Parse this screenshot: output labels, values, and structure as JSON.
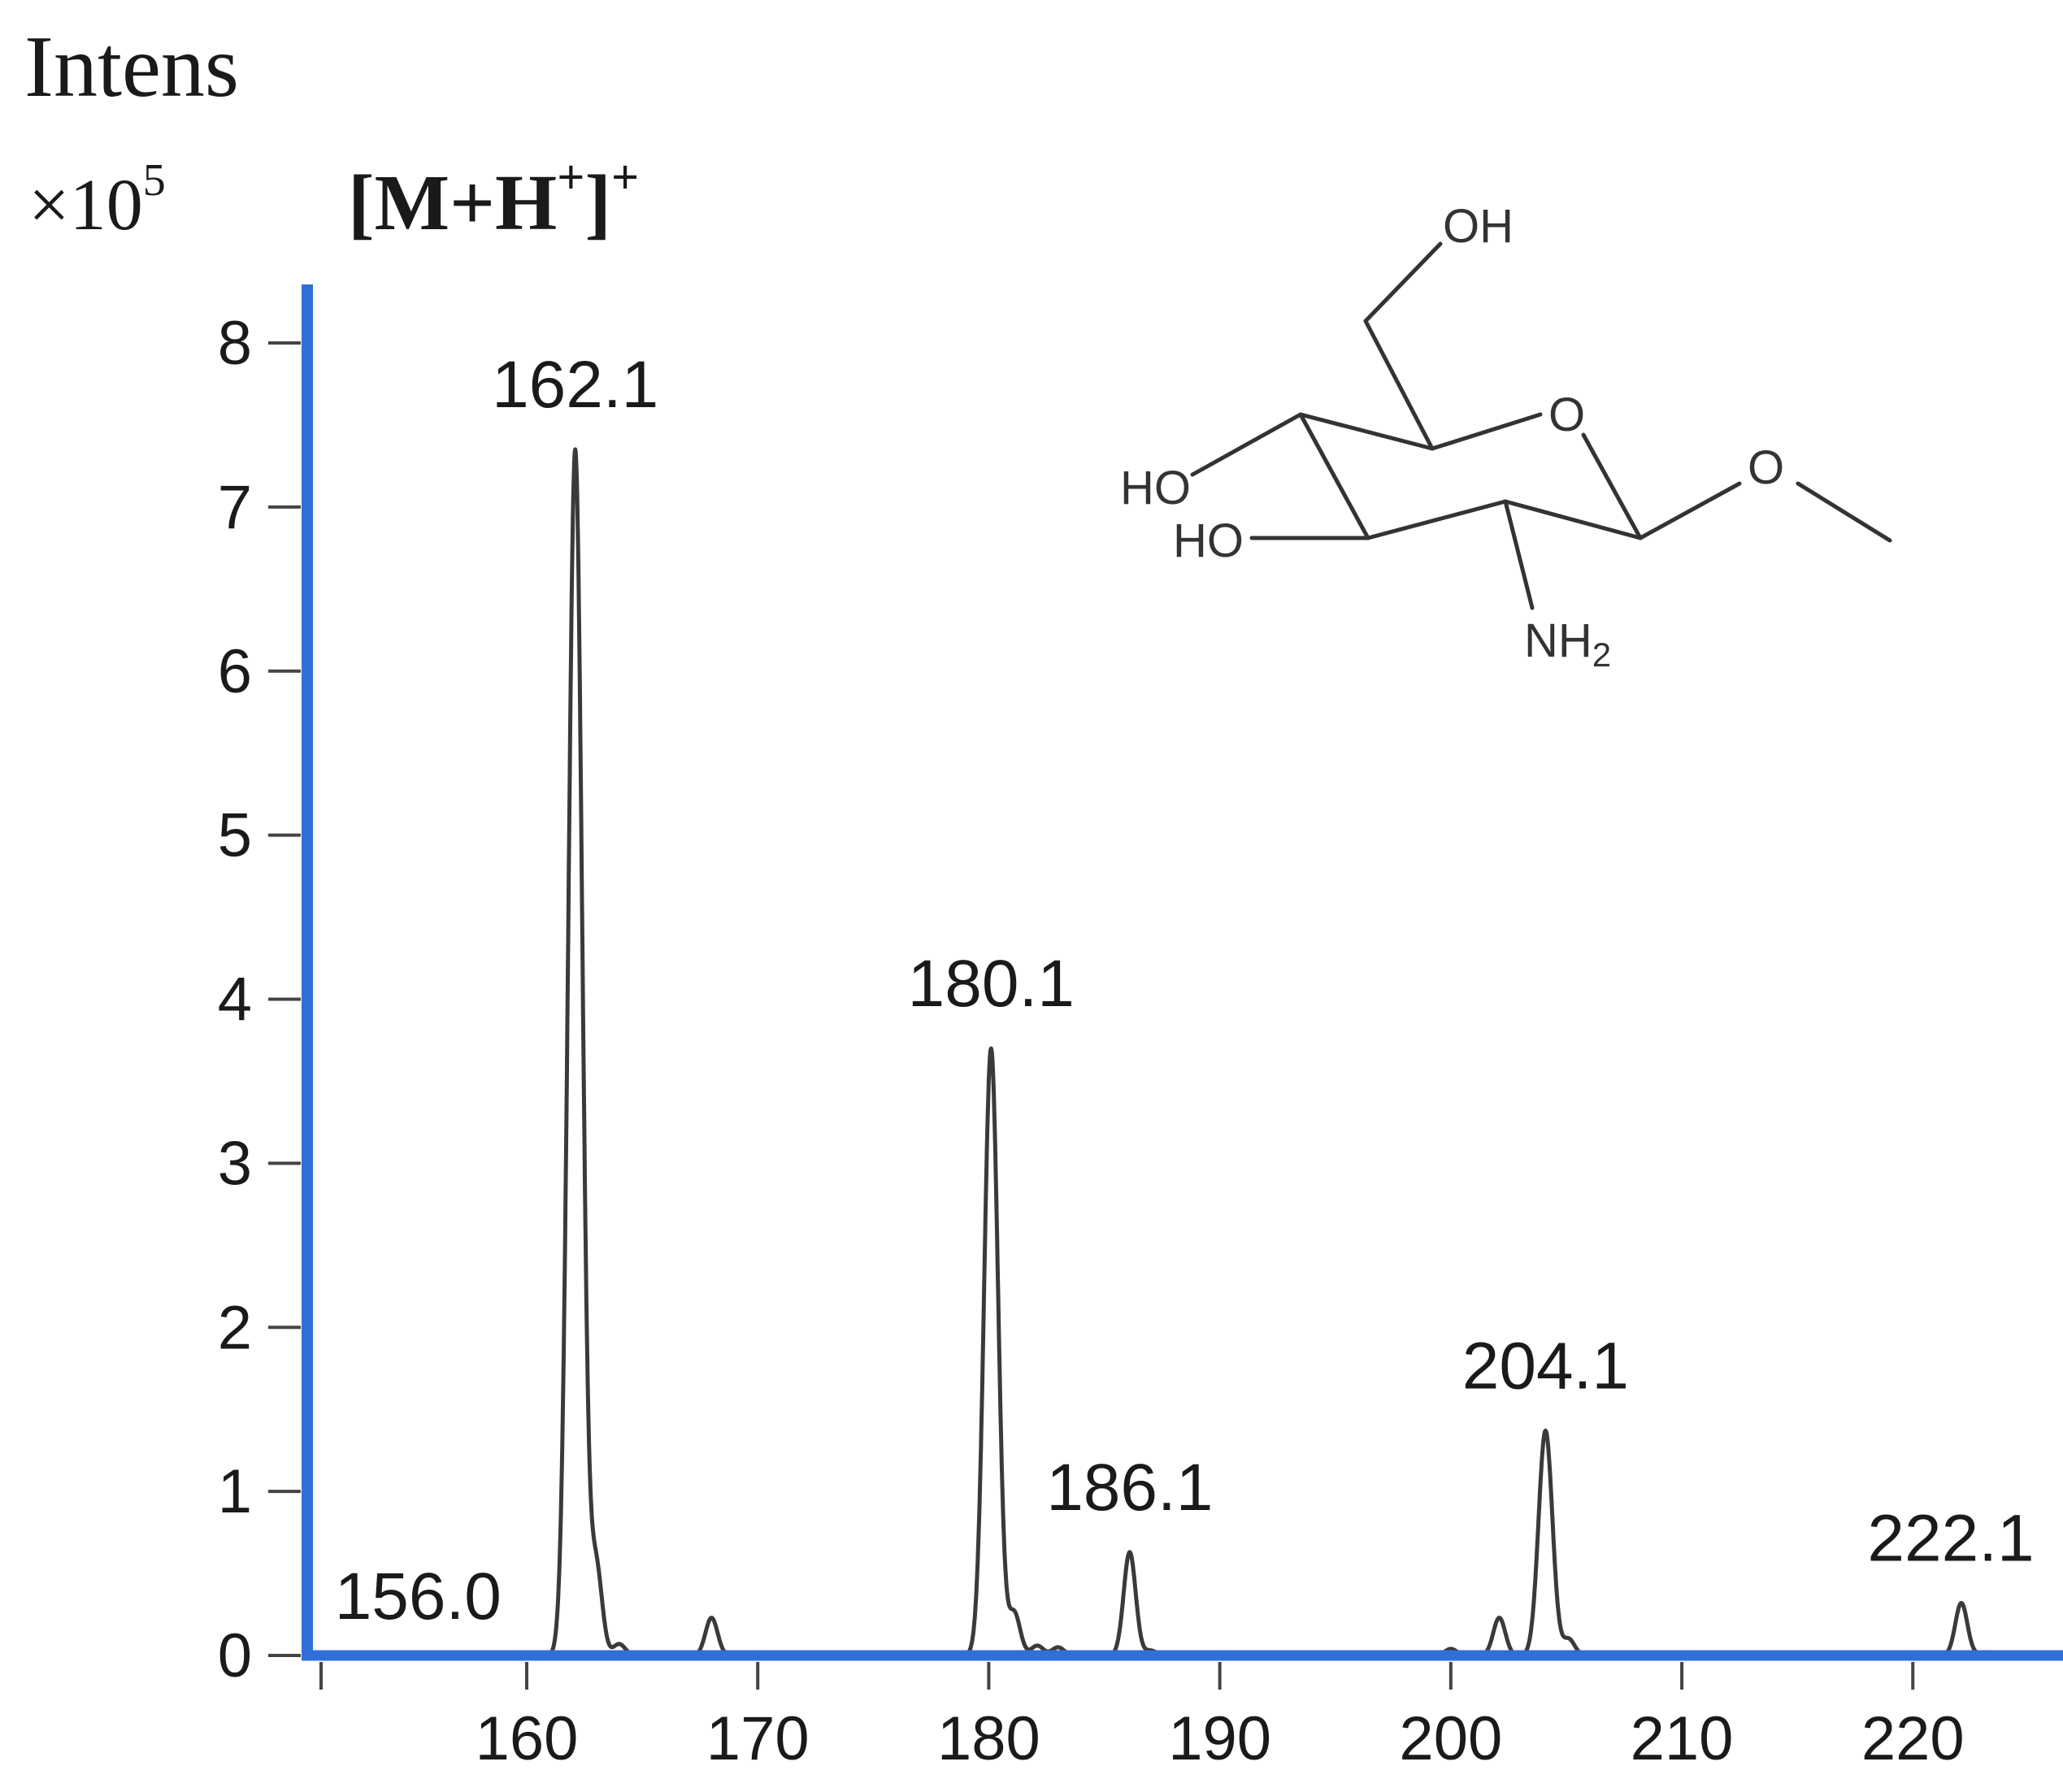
{
  "chart_data": {
    "type": "line",
    "y_title": "Intens",
    "y_multiplier": "×10",
    "y_multiplier_exp": "5",
    "ion_label": {
      "main": "[M+H",
      "sup1": "+",
      "close": "]",
      "sup2": "+"
    },
    "xlim": [
      150.5,
      226.5
    ],
    "ylim": [
      0,
      8
    ],
    "x_ticks": [
      160,
      170,
      180,
      190,
      200,
      210,
      220
    ],
    "x_tick_labels": [
      "160",
      "170",
      "180",
      "190",
      "200",
      "210",
      "220"
    ],
    "y_ticks": [
      0,
      1,
      2,
      3,
      4,
      5,
      6,
      7,
      8
    ],
    "y_tick_labels": [
      "0",
      "1",
      "2",
      "3",
      "4",
      "5",
      "6",
      "7",
      "8"
    ],
    "grid": false,
    "peaks": [
      {
        "mz": 156.0,
        "intensity": 0.01,
        "label": "156.0"
      },
      {
        "mz": 162.1,
        "intensity": 7.35,
        "label": "162.1"
      },
      {
        "mz": 163.0,
        "intensity": 0.55
      },
      {
        "mz": 164.0,
        "intensity": 0.07
      },
      {
        "mz": 168.0,
        "intensity": 0.23
      },
      {
        "mz": 180.1,
        "intensity": 3.7,
        "label": "180.1"
      },
      {
        "mz": 181.1,
        "intensity": 0.26
      },
      {
        "mz": 182.1,
        "intensity": 0.06
      },
      {
        "mz": 183.0,
        "intensity": 0.05
      },
      {
        "mz": 186.1,
        "intensity": 0.63,
        "label": "186.1"
      },
      {
        "mz": 187.0,
        "intensity": 0.03
      },
      {
        "mz": 200.0,
        "intensity": 0.04
      },
      {
        "mz": 202.1,
        "intensity": 0.23
      },
      {
        "mz": 204.1,
        "intensity": 1.37,
        "label": "204.1"
      },
      {
        "mz": 205.1,
        "intensity": 0.1
      },
      {
        "mz": 222.1,
        "intensity": 0.32,
        "label": "222.1"
      },
      {
        "mz": 223.1,
        "intensity": 0.02
      }
    ],
    "colors": {
      "axis": "#2f6fd8",
      "trace": "#3a3a3a",
      "text": "#1a1a1a"
    }
  },
  "structure": {
    "labels": {
      "oh_top": "OH",
      "ho_upper": "HO",
      "ho_lower": "HO",
      "ring_o": "O",
      "methoxy_o": "O",
      "nh2": "NH",
      "nh2_sub": "2"
    }
  }
}
